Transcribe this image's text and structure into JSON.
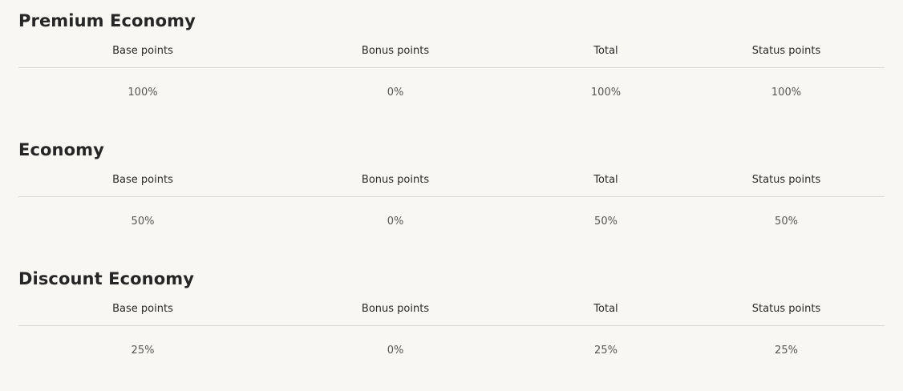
{
  "columns": [
    "Base points",
    "Bonus points",
    "Total",
    "Status points"
  ],
  "sections": [
    {
      "title": "Premium Economy",
      "values": [
        "100%",
        "0%",
        "100%",
        "100%"
      ]
    },
    {
      "title": "Economy",
      "values": [
        "50%",
        "0%",
        "50%",
        "50%"
      ]
    },
    {
      "title": "Discount Economy",
      "values": [
        "25%",
        "0%",
        "25%",
        "25%"
      ]
    }
  ]
}
